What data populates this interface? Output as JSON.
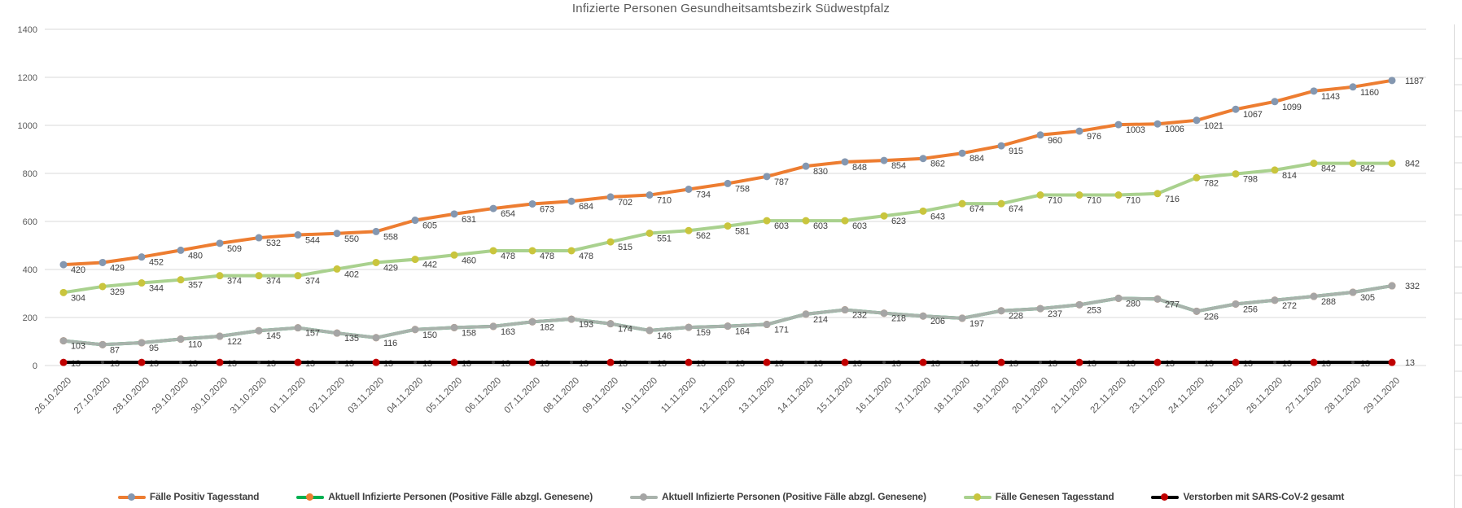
{
  "chart_data": {
    "type": "line",
    "title": "Infizierte Personen Gesundheitsamtsbezirk Südwestpfalz",
    "xlabel": "",
    "ylabel": "",
    "ylim": [
      0,
      1400
    ],
    "yticks": [
      0,
      200,
      400,
      600,
      800,
      1000,
      1200,
      1400
    ],
    "grid": true,
    "legend_position": "bottom",
    "x": [
      "26.10.2020",
      "27.10.2020",
      "28.10.2020",
      "29.10.2020",
      "30.10.2020",
      "31.10.2020",
      "01.11.2020",
      "02.11.2020",
      "03.11.2020",
      "04.11.2020",
      "05.11.2020",
      "06.11.2020",
      "07.11.2020",
      "08.11.2020",
      "09.11.2020",
      "10.11.2020",
      "11.11.2020",
      "12.11.2020",
      "13.11.2020",
      "14.11.2020",
      "15.11.2020",
      "16.11.2020",
      "17.11.2020",
      "18.11.2020",
      "19.11.2020",
      "20.11.2020",
      "21.11.2020",
      "22.11.2020",
      "23.11.2020",
      "24.11.2020",
      "25.11.2020",
      "26.11.2020",
      "27.11.2020",
      "28.11.2020",
      "29.11.2020"
    ],
    "series": [
      {
        "name": "Fälle Positiv Tagesstand",
        "line_color": "#ED7D31",
        "marker_color": "#8497B0",
        "values": [
          420,
          429,
          452,
          480,
          509,
          532,
          544,
          550,
          558,
          605,
          631,
          654,
          673,
          684,
          702,
          710,
          734,
          758,
          787,
          830,
          848,
          854,
          862,
          884,
          915,
          960,
          976,
          1003,
          1006,
          1021,
          1067,
          1099,
          1143,
          1160,
          1187
        ]
      },
      {
        "name": "Aktuell Infizierte Personen (Positive Fälle abzgl. Genesene)",
        "line_color": "#00B050",
        "marker_color": "#ED7D31",
        "hidden_under_gray": true,
        "show_labels": false,
        "values": [
          103,
          87,
          95,
          110,
          122,
          145,
          157,
          135,
          116,
          150,
          158,
          163,
          182,
          193,
          174,
          146,
          159,
          164,
          171,
          214,
          232,
          218,
          206,
          197,
          228,
          237,
          253,
          280,
          277,
          226,
          256,
          272,
          288,
          305,
          332
        ]
      },
      {
        "name": "Aktuell Infizierte Personen (Positive Fälle abzgl. Genesene)",
        "line_color": "#A9B3AC",
        "marker_color": "#A5A5A5",
        "values": [
          103,
          87,
          95,
          110,
          122,
          145,
          157,
          135,
          116,
          150,
          158,
          163,
          182,
          193,
          174,
          146,
          159,
          164,
          171,
          214,
          232,
          218,
          206,
          197,
          228,
          237,
          253,
          280,
          277,
          226,
          256,
          272,
          288,
          305,
          332
        ]
      },
      {
        "name": "Fälle Genesen Tagesstand",
        "line_color": "#A9D18E",
        "marker_color": "#C9C53D",
        "values": [
          304,
          329,
          344,
          357,
          374,
          374,
          374,
          402,
          429,
          442,
          460,
          478,
          478,
          478,
          515,
          551,
          562,
          581,
          603,
          603,
          603,
          623,
          643,
          674,
          674,
          710,
          710,
          710,
          716,
          782,
          798,
          814,
          842,
          842,
          842
        ]
      },
      {
        "name": "Verstorben mit SARS-CoV-2 gesamt",
        "line_color": "#000000",
        "marker_color": "#C00000",
        "labels_under_line": true,
        "alt_markers": true,
        "values": [
          13,
          13,
          13,
          13,
          13,
          13,
          13,
          13,
          13,
          13,
          13,
          13,
          13,
          13,
          13,
          13,
          13,
          13,
          13,
          13,
          13,
          13,
          13,
          13,
          13,
          13,
          13,
          13,
          13,
          13,
          13,
          13,
          13,
          13,
          13
        ]
      }
    ],
    "colors": {
      "grid": "#D9D9D9",
      "axis_text": "#595959",
      "data_label": "#404040",
      "title": "#595959"
    }
  }
}
